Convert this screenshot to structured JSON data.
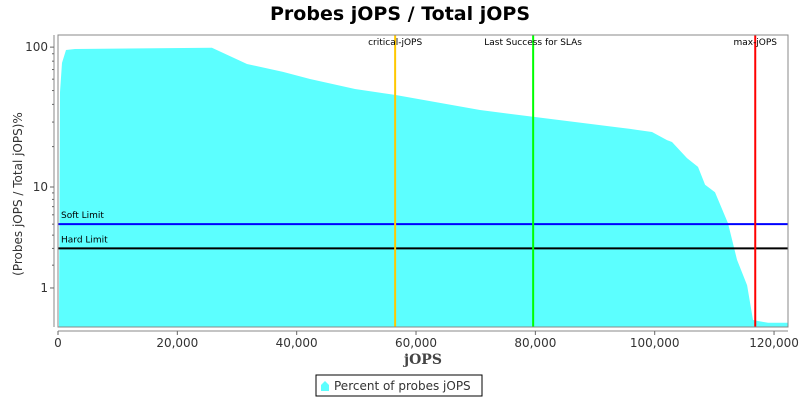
{
  "chart_data": {
    "type": "area",
    "title": "Probes jOPS / Total jOPS",
    "xlabel": "jOPS",
    "ylabel": "(Probes jOPS / Total jOPS)%",
    "xlim": [
      0,
      122340
    ],
    "ylim": [
      0,
      100
    ],
    "y_scale": "log",
    "x_ticks": [
      0,
      20000,
      40000,
      60000,
      80000,
      100000,
      120000
    ],
    "x_tick_labels": [
      "0",
      "20,000",
      "40,000",
      "60,000",
      "80,000",
      "100,000",
      "120,000"
    ],
    "y_ticks": [
      1,
      10,
      100
    ],
    "y_tick_labels": [
      "1",
      "10",
      "100"
    ],
    "grid": false,
    "legend_position": "bottom",
    "series": [
      {
        "name": "Percent of probes jOPS",
        "color": "#5cffff",
        "x": [
          168,
          335,
          670,
          1340,
          2850,
          25800,
          31680,
          37700,
          42240,
          49780,
          56480,
          70730,
          79610,
          95870,
          99550,
          102070,
          102900,
          105420,
          107260,
          108440,
          110110,
          112290,
          113800,
          115480,
          116480,
          117650,
          119000,
          122340
        ],
        "y": [
          0,
          48.8,
          77.8,
          95.5,
          97,
          99,
          76.5,
          67.4,
          60.2,
          51.3,
          46.6,
          36.5,
          32.7,
          26.8,
          25.5,
          22.3,
          21.6,
          16.5,
          14.2,
          10.4,
          9.1,
          5.1,
          2.3,
          1.1,
          0.08,
          0.05,
          0.02,
          0.02
        ]
      }
    ],
    "vertical_markers": [
      {
        "label": "critical-jOPS",
        "x": 56500,
        "color": "#ffc800"
      },
      {
        "label": "Last Success for SLAs",
        "x": 79630,
        "color": "#00ff00"
      },
      {
        "label": "max-jOPS",
        "x": 116850,
        "color": "#ff0000"
      }
    ],
    "horizontal_markers": [
      {
        "label": "Soft Limit",
        "y": 5,
        "color": "#0000ff"
      },
      {
        "label": "Hard Limit",
        "y": 3,
        "color": "#000000"
      }
    ]
  }
}
